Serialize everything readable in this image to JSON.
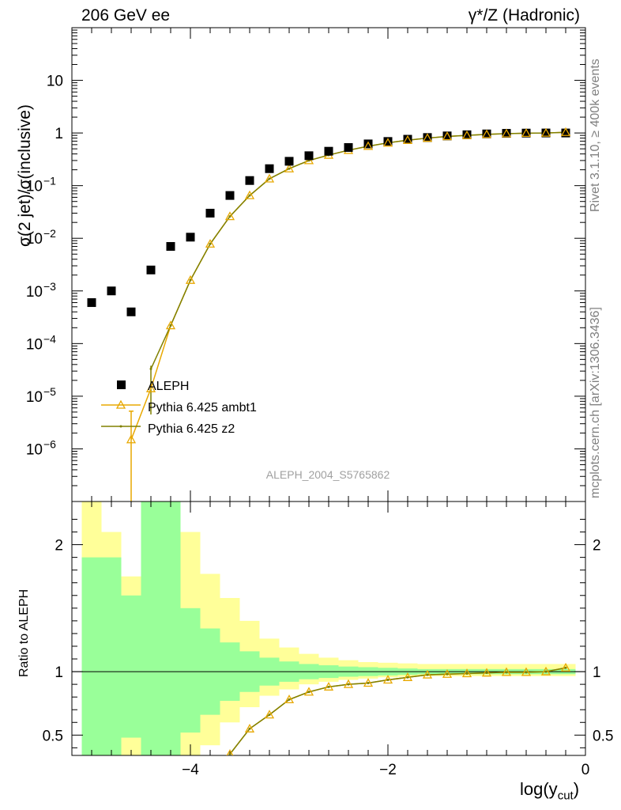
{
  "header": {
    "left": "206 GeV ee",
    "right": "γ*/Z (Hadronic)"
  },
  "side_labels": {
    "rivet": "Rivet 3.1.10, ≥ 400k events",
    "mcplots": "mcplots.cern.ch [arXiv:1306.3436]"
  },
  "colors": {
    "aleph": "#000000",
    "ambt1": "#e8a800",
    "z2": "#808000",
    "band_inner": "#99ff99",
    "band_outer": "#ffff99"
  },
  "chart_data": [
    {
      "type": "scatter",
      "panel": "main",
      "ylabel": "σ(2 jet)/σ(inclusive)",
      "watermark": "ALEPH_2004_S5765862",
      "xlim": [
        -5.2,
        0
      ],
      "ylim": [
        1e-07,
        100
      ],
      "yscale": "log",
      "yticks": [
        {
          "v": 10,
          "label": "10"
        },
        {
          "v": 1,
          "label": "1"
        },
        {
          "v": 0.1,
          "label": "10",
          "exp": "−1"
        },
        {
          "v": 0.01,
          "label": "10",
          "exp": "−2"
        },
        {
          "v": 0.001,
          "label": "10",
          "exp": "−3"
        },
        {
          "v": 0.0001,
          "label": "10",
          "exp": "−4"
        },
        {
          "v": 1e-05,
          "label": "10",
          "exp": "−5"
        },
        {
          "v": 1e-06,
          "label": "10",
          "exp": "−6"
        }
      ],
      "legend": [
        "ALEPH",
        "Pythia 6.425 ambt1",
        "Pythia 6.425 z2"
      ],
      "legend_position": "lower-left",
      "x": [
        -5.0,
        -4.8,
        -4.6,
        -4.4,
        -4.2,
        -4.0,
        -3.8,
        -3.6,
        -3.4,
        -3.2,
        -3.0,
        -2.8,
        -2.6,
        -2.4,
        -2.2,
        -2.0,
        -1.8,
        -1.6,
        -1.4,
        -1.2,
        -1.0,
        -0.8,
        -0.6,
        -0.4,
        -0.2
      ],
      "series": [
        {
          "name": "ALEPH",
          "marker": "square",
          "values": [
            0.0006,
            0.001,
            0.0004,
            0.0025,
            0.007,
            0.0105,
            0.03,
            0.065,
            0.125,
            0.21,
            0.29,
            0.37,
            0.45,
            0.53,
            0.62,
            0.69,
            0.76,
            0.82,
            0.88,
            0.925,
            0.96,
            0.985,
            0.995,
            1.0,
            1.0
          ]
        },
        {
          "name": "Pythia 6.425 ambt1",
          "marker": "triangle",
          "x": [
            -4.6,
            -4.4,
            -4.2,
            -4.0,
            -3.8,
            -3.6,
            -3.4,
            -3.2,
            -3.0,
            -2.8,
            -2.6,
            -2.4,
            -2.2,
            -2.0,
            -1.8,
            -1.6,
            -1.4,
            -1.2,
            -1.0,
            -0.8,
            -0.6,
            -0.4,
            -0.2
          ],
          "values": [
            1.5e-06,
            1.4e-05,
            0.00022,
            0.0016,
            0.0078,
            0.026,
            0.065,
            0.135,
            0.21,
            0.3,
            0.38,
            0.47,
            0.56,
            0.65,
            0.73,
            0.8,
            0.86,
            0.9,
            0.94,
            0.97,
            0.99,
            1.0,
            1.03
          ]
        },
        {
          "name": "Pythia 6.425 z2",
          "marker": "dot",
          "x": [
            -4.4,
            -4.2,
            -4.0,
            -3.8,
            -3.6,
            -3.4,
            -3.2,
            -3.0,
            -2.8,
            -2.6,
            -2.4,
            -2.2,
            -2.0,
            -1.8,
            -1.6,
            -1.4,
            -1.2,
            -1.0,
            -0.8,
            -0.6,
            -0.4,
            -0.2
          ],
          "values": [
            3.3e-05,
            0.00022,
            0.0016,
            0.0078,
            0.026,
            0.065,
            0.135,
            0.21,
            0.3,
            0.38,
            0.47,
            0.56,
            0.65,
            0.73,
            0.8,
            0.86,
            0.9,
            0.94,
            0.97,
            0.99,
            1.0,
            1.03
          ]
        }
      ]
    },
    {
      "type": "line",
      "panel": "ratio",
      "ylabel": "Ratio to ALEPH",
      "xlabel": "log(y",
      "xlabel_sub": "cut",
      "xlabel_end": ")",
      "xlim": [
        -5.2,
        0
      ],
      "ylim": [
        0.34,
        2.34
      ],
      "xticks": [
        {
          "v": -4,
          "label": "−4"
        },
        {
          "v": -2,
          "label": "−2"
        },
        {
          "v": 0,
          "label": "0"
        }
      ],
      "yticks": [
        {
          "v": 2,
          "label": "2"
        },
        {
          "v": 1,
          "label": "1"
        },
        {
          "v": 0.5,
          "label": "0.5"
        }
      ],
      "bands": {
        "edges": [
          -5.1,
          -4.9,
          -4.7,
          -4.5,
          -4.3,
          -4.1,
          -3.9,
          -3.7,
          -3.5,
          -3.3,
          -3.1,
          -2.9,
          -2.7,
          -2.5,
          -2.3,
          -2.1,
          -1.9,
          -1.7,
          -1.5,
          -1.3,
          -1.1,
          -0.9,
          -0.7,
          -0.5,
          -0.3,
          -0.1
        ],
        "inner_lo": [
          0.3,
          0.3,
          0.48,
          0.3,
          0.3,
          0.52,
          0.66,
          0.77,
          0.84,
          0.89,
          0.92,
          0.94,
          0.95,
          0.96,
          0.965,
          0.97,
          0.975,
          0.98,
          0.98,
          0.98,
          0.98,
          0.98,
          0.98,
          0.98,
          0.98
        ],
        "inner_hi": [
          1.9,
          1.9,
          1.6,
          2.4,
          2.4,
          1.5,
          1.34,
          1.23,
          1.16,
          1.11,
          1.08,
          1.06,
          1.05,
          1.04,
          1.035,
          1.03,
          1.025,
          1.02,
          1.02,
          1.02,
          1.02,
          1.02,
          1.02,
          1.02,
          1.02
        ],
        "outer_lo": [
          0.3,
          0.3,
          0.3,
          0.3,
          0.3,
          0.3,
          0.42,
          0.6,
          0.72,
          0.81,
          0.86,
          0.9,
          0.92,
          0.935,
          0.945,
          0.955,
          0.96,
          0.965,
          0.965,
          0.965,
          0.965,
          0.965,
          0.965,
          0.965,
          0.965
        ],
        "outer_hi": [
          2.4,
          2.1,
          1.75,
          2.4,
          2.4,
          2.1,
          1.77,
          1.58,
          1.4,
          1.26,
          1.19,
          1.14,
          1.11,
          1.09,
          1.075,
          1.07,
          1.065,
          1.06,
          1.06,
          1.06,
          1.06,
          1.06,
          1.06,
          1.06,
          1.06
        ]
      },
      "x": [
        -3.6,
        -3.4,
        -3.2,
        -3.0,
        -2.8,
        -2.6,
        -2.4,
        -2.2,
        -2.0,
        -1.8,
        -1.6,
        -1.4,
        -1.2,
        -1.0,
        -0.8,
        -0.6,
        -0.4,
        -0.2
      ],
      "series": [
        {
          "name": "Pythia 6.425 ambt1",
          "values": [
            0.35,
            0.55,
            0.66,
            0.78,
            0.84,
            0.88,
            0.9,
            0.91,
            0.935,
            0.955,
            0.975,
            0.98,
            0.985,
            0.99,
            0.995,
            0.995,
            1.0,
            1.03
          ]
        },
        {
          "name": "Pythia 6.425 z2",
          "values": [
            0.35,
            0.55,
            0.66,
            0.78,
            0.84,
            0.88,
            0.9,
            0.91,
            0.935,
            0.955,
            0.975,
            0.98,
            0.985,
            0.99,
            0.995,
            0.995,
            1.0,
            1.03
          ]
        }
      ]
    }
  ]
}
